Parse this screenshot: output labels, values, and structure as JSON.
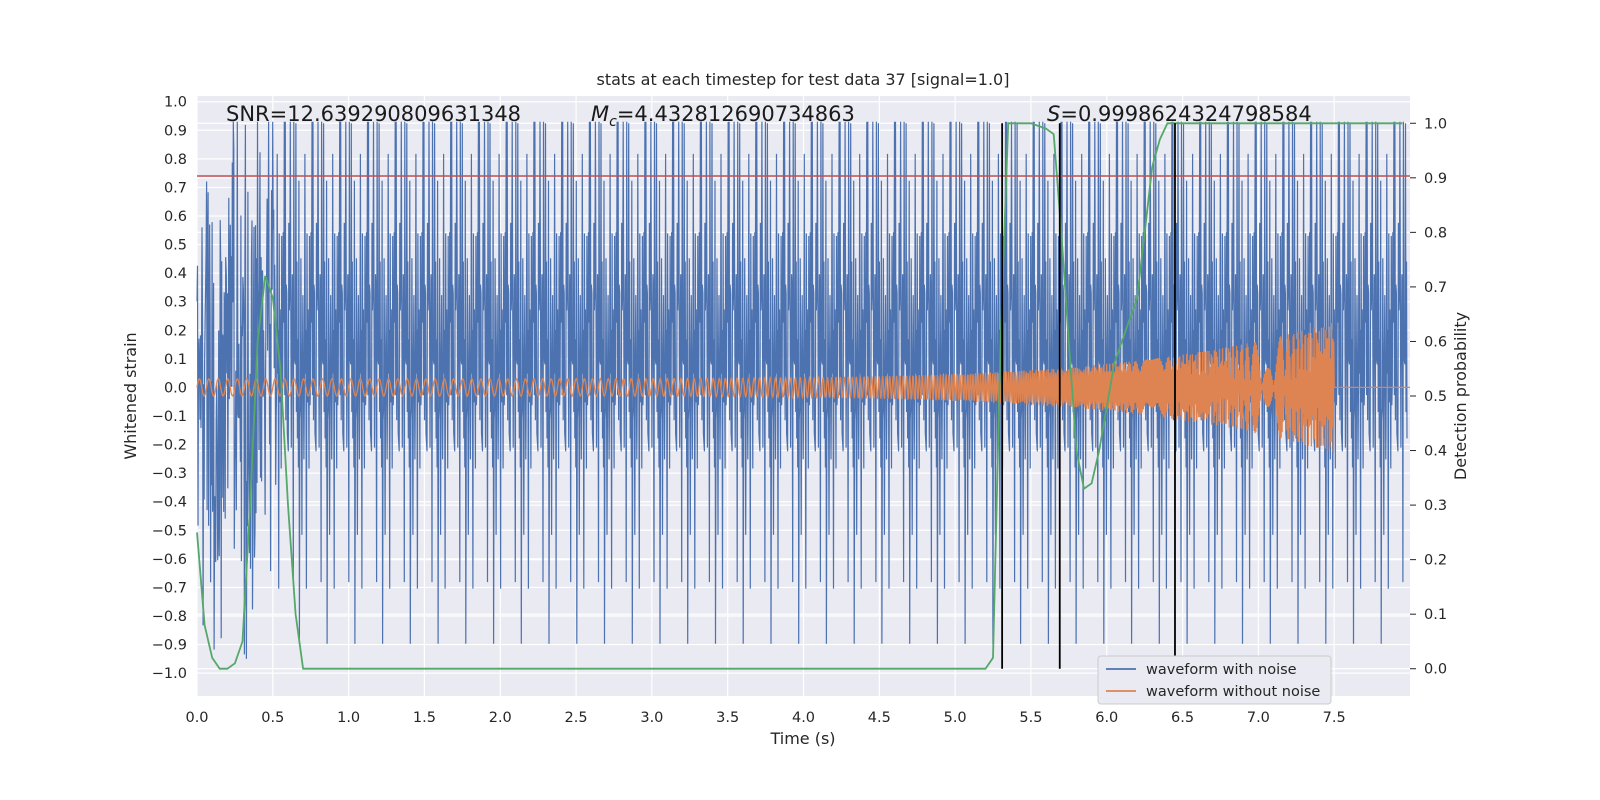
{
  "chart_data": {
    "type": "line",
    "title": "stats at each timestep for test data 37 [signal=1.0]",
    "xlabel": "Time (s)",
    "ylabel_left": "Whitened strain",
    "ylabel_right": "Detection probability",
    "xlim": [
      0.0,
      8.0
    ],
    "ylim_left": [
      -1.08,
      1.02
    ],
    "ylim_right": [
      -0.05,
      1.05
    ],
    "x_ticks": [
      "0.0",
      "0.5",
      "1.0",
      "1.5",
      "2.0",
      "2.5",
      "3.0",
      "3.5",
      "4.0",
      "4.5",
      "5.0",
      "5.5",
      "6.0",
      "6.5",
      "7.0",
      "7.5"
    ],
    "y_ticks_left": [
      "1.0",
      "0.9",
      "0.8",
      "0.7",
      "0.6",
      "0.5",
      "0.4",
      "0.3",
      "0.2",
      "0.1",
      "0.0",
      "-0.1",
      "-0.2",
      "-0.3",
      "-0.4",
      "-0.5",
      "-0.6",
      "-0.7",
      "-0.8",
      "-0.9",
      "-1.0"
    ],
    "y_ticks_right": [
      "1.0",
      "0.9",
      "0.8",
      "0.7",
      "0.6",
      "0.5",
      "0.4",
      "0.3",
      "0.2",
      "0.1",
      "0.0"
    ],
    "grid": true,
    "legend_position": "lower-right",
    "annotations": {
      "snr": "SNR=12.639290809631348",
      "mc_symbol": "M",
      "mc_sub": "c",
      "mc_value": "=4.432812690734863",
      "s_symbol": "S",
      "s_value": "=0.9998624324798584"
    },
    "series": [
      {
        "name": "waveform with noise",
        "color": "#4c72b0",
        "axis": "left",
        "description_values": {
          "typical_amplitude": 0.45,
          "max_peak": 0.93,
          "min_peak": -0.95
        }
      },
      {
        "name": "waveform without noise",
        "color": "#dd8452",
        "axis": "left",
        "chirp": {
          "start_amplitude": 0.03,
          "end_amplitude": 0.23,
          "end_time": 7.5
        }
      },
      {
        "name": "",
        "color": "#55a868",
        "axis": "right",
        "x": [
          0.0,
          0.05,
          0.1,
          0.15,
          0.2,
          0.25,
          0.3,
          0.35,
          0.4,
          0.45,
          0.5,
          0.55,
          0.6,
          0.65,
          0.7,
          0.75,
          0.8,
          0.85,
          0.9,
          1.0,
          2.0,
          3.0,
          4.0,
          5.0,
          5.15,
          5.2,
          5.25,
          5.3,
          5.35,
          5.4,
          5.45,
          5.5,
          5.6,
          5.65,
          5.7,
          5.75,
          5.8,
          5.85,
          5.9,
          5.95,
          6.0,
          6.05,
          6.1,
          6.15,
          6.2,
          6.25,
          6.3,
          6.35,
          6.4,
          6.45,
          6.5,
          6.55,
          6.6,
          6.65,
          6.7,
          7.0,
          7.5,
          7.95
        ],
        "y": [
          0.25,
          0.08,
          0.02,
          0.0,
          0.0,
          0.01,
          0.05,
          0.3,
          0.6,
          0.72,
          0.68,
          0.55,
          0.3,
          0.1,
          0.0,
          0.0,
          0.0,
          0.0,
          0.0,
          0.0,
          0.0,
          0.0,
          0.0,
          0.0,
          0.0,
          0.0,
          0.02,
          0.6,
          1.0,
          1.0,
          1.0,
          1.0,
          0.99,
          0.98,
          0.8,
          0.6,
          0.4,
          0.33,
          0.34,
          0.4,
          0.48,
          0.56,
          0.6,
          0.64,
          0.68,
          0.8,
          0.92,
          0.97,
          1.0,
          1.0,
          1.0,
          1.0,
          1.0,
          1.0,
          1.0,
          1.0,
          1.0,
          1.0
        ]
      }
    ],
    "reference_lines": {
      "strain_threshold": {
        "value": 0.74,
        "color": "#c44e52"
      },
      "detections_time_s": [
        5.31,
        5.69,
        6.45
      ]
    }
  }
}
